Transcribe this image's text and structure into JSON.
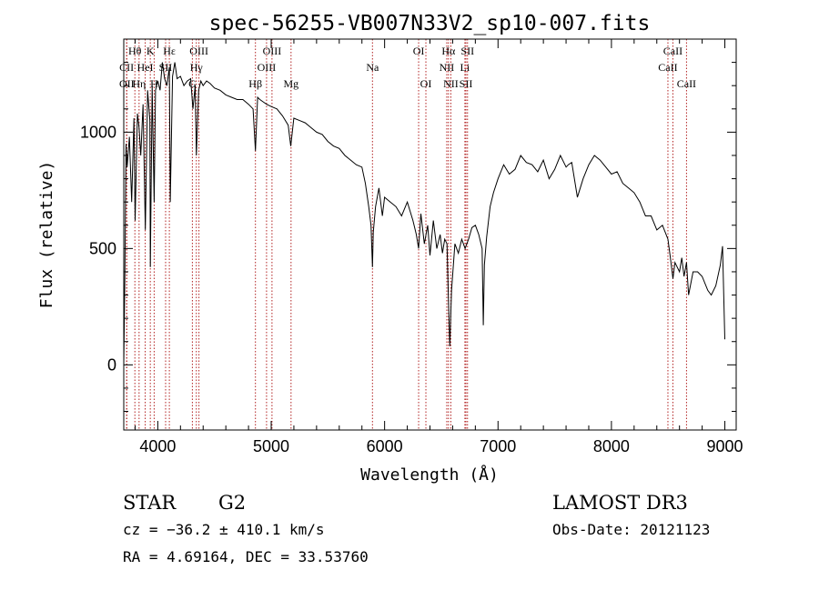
{
  "chart_data": {
    "type": "line",
    "title": "spec-56255-VB007N33V2_sp10-007.fits",
    "xlabel": "Wavelength (Å)",
    "ylabel": "Flux (relative)",
    "xlim": [
      3700,
      9100
    ],
    "ylim": [
      -280,
      1400
    ],
    "xticks": [
      4000,
      5000,
      6000,
      7000,
      8000,
      9000
    ],
    "yticks": [
      0,
      500,
      1000
    ],
    "x_minor_step": 200,
    "y_minor_step": 100,
    "spectrum": {
      "x": [
        3700,
        3710,
        3720,
        3730,
        3750,
        3770,
        3790,
        3800,
        3820,
        3835,
        3850,
        3870,
        3890,
        3910,
        3930,
        3934,
        3950,
        3968,
        3980,
        4000,
        4020,
        4040,
        4060,
        4080,
        4102,
        4110,
        4130,
        4150,
        4170,
        4200,
        4230,
        4260,
        4290,
        4310,
        4330,
        4340,
        4360,
        4380,
        4400,
        4430,
        4460,
        4500,
        4550,
        4600,
        4650,
        4700,
        4750,
        4800,
        4840,
        4861,
        4880,
        4900,
        4930,
        4960,
        5000,
        5050,
        5100,
        5150,
        5172,
        5200,
        5250,
        5300,
        5350,
        5400,
        5450,
        5500,
        5550,
        5600,
        5650,
        5700,
        5750,
        5800,
        5830,
        5860,
        5880,
        5893,
        5900,
        5920,
        5950,
        5980,
        6000,
        6050,
        6100,
        6150,
        6200,
        6250,
        6280,
        6300,
        6320,
        6350,
        6380,
        6400,
        6430,
        6460,
        6490,
        6510,
        6530,
        6550,
        6563,
        6575,
        6590,
        6620,
        6650,
        6680,
        6710,
        6740,
        6770,
        6800,
        6830,
        6860,
        6870,
        6880,
        6900,
        6930,
        6960,
        7000,
        7050,
        7100,
        7150,
        7200,
        7250,
        7300,
        7350,
        7400,
        7450,
        7500,
        7550,
        7600,
        7620,
        7650,
        7700,
        7750,
        7800,
        7850,
        7900,
        7950,
        8000,
        8050,
        8100,
        8150,
        8200,
        8250,
        8300,
        8350,
        8400,
        8450,
        8498,
        8520,
        8542,
        8560,
        8600,
        8620,
        8640,
        8662,
        8680,
        8720,
        8760,
        8800,
        8850,
        8880,
        8920,
        8960,
        8980,
        9000
      ],
      "y": [
        0,
        380,
        950,
        850,
        980,
        700,
        1060,
        620,
        1080,
        1020,
        900,
        1120,
        580,
        1180,
        1050,
        420,
        1200,
        700,
        1180,
        1220,
        1180,
        1300,
        1230,
        1200,
        1280,
        700,
        1240,
        1300,
        1230,
        1240,
        1200,
        1220,
        1230,
        1100,
        1200,
        900,
        1180,
        1220,
        1200,
        1220,
        1210,
        1190,
        1180,
        1160,
        1150,
        1140,
        1140,
        1120,
        1100,
        920,
        1150,
        1140,
        1130,
        1120,
        1110,
        1100,
        1070,
        1030,
        940,
        1060,
        1050,
        1040,
        1020,
        1000,
        990,
        960,
        940,
        930,
        900,
        880,
        860,
        850,
        780,
        680,
        600,
        420,
        570,
        680,
        760,
        640,
        720,
        700,
        680,
        640,
        700,
        620,
        560,
        500,
        650,
        520,
        600,
        470,
        620,
        500,
        560,
        480,
        540,
        520,
        280,
        80,
        320,
        520,
        480,
        540,
        500,
        540,
        590,
        600,
        560,
        500,
        170,
        430,
        550,
        680,
        740,
        800,
        860,
        820,
        840,
        900,
        870,
        860,
        830,
        880,
        800,
        840,
        900,
        850,
        860,
        870,
        720,
        800,
        860,
        900,
        880,
        850,
        820,
        830,
        780,
        760,
        740,
        700,
        640,
        640,
        580,
        600,
        540,
        460,
        370,
        440,
        400,
        460,
        380,
        440,
        300,
        400,
        400,
        380,
        320,
        300,
        340,
        430,
        510,
        110
      ]
    },
    "lines": [
      {
        "label": "Hθ",
        "x": 3798,
        "row": 0
      },
      {
        "label": "OII",
        "x": 3727,
        "row": 2
      },
      {
        "label": "CII",
        "x": 3725,
        "row": 1
      },
      {
        "label": "Hη",
        "x": 3835,
        "row": 2
      },
      {
        "label": "HeI",
        "x": 3889,
        "row": 1
      },
      {
        "label": "K",
        "x": 3934,
        "row": 0
      },
      {
        "label": "H",
        "x": 3968,
        "row": 2
      },
      {
        "label": "SII",
        "x": 4069,
        "row": 1
      },
      {
        "label": "Hε",
        "x": 4102,
        "row": 0
      },
      {
        "label": "G",
        "x": 4305,
        "row": 2
      },
      {
        "label": "OIII",
        "x": 4363,
        "row": 0
      },
      {
        "label": "Hγ",
        "x": 4340,
        "row": 1
      },
      {
        "label": "Hβ",
        "x": 4861,
        "row": 2
      },
      {
        "label": "OIII",
        "x": 4959,
        "row": 1
      },
      {
        "label": "OIII",
        "x": 5007,
        "row": 0
      },
      {
        "label": "Mg",
        "x": 5175,
        "row": 2
      },
      {
        "label": "Na",
        "x": 5893,
        "row": 1
      },
      {
        "label": "OI",
        "x": 6300,
        "row": 0
      },
      {
        "label": "OI",
        "x": 6364,
        "row": 2
      },
      {
        "label": "NII",
        "x": 6548,
        "row": 1
      },
      {
        "label": "Hα",
        "x": 6563,
        "row": 0
      },
      {
        "label": "NII",
        "x": 6584,
        "row": 2
      },
      {
        "label": "Li",
        "x": 6708,
        "row": 1
      },
      {
        "label": "SII",
        "x": 6717,
        "row": 2
      },
      {
        "label": "SII",
        "x": 6731,
        "row": 0
      },
      {
        "label": "CaII",
        "x": 8498,
        "row": 1
      },
      {
        "label": "CaII",
        "x": 8542,
        "row": 0
      },
      {
        "label": "CaII",
        "x": 8662,
        "row": 2
      }
    ]
  },
  "info": {
    "object_class": "STAR",
    "subclass": "G2",
    "survey": "LAMOST DR3",
    "cz": "cz = −36.2 ± 410.1 km/s",
    "obs_date": "Obs-Date: 20121123",
    "radec": "RA =   4.69164, DEC =  33.53760"
  }
}
